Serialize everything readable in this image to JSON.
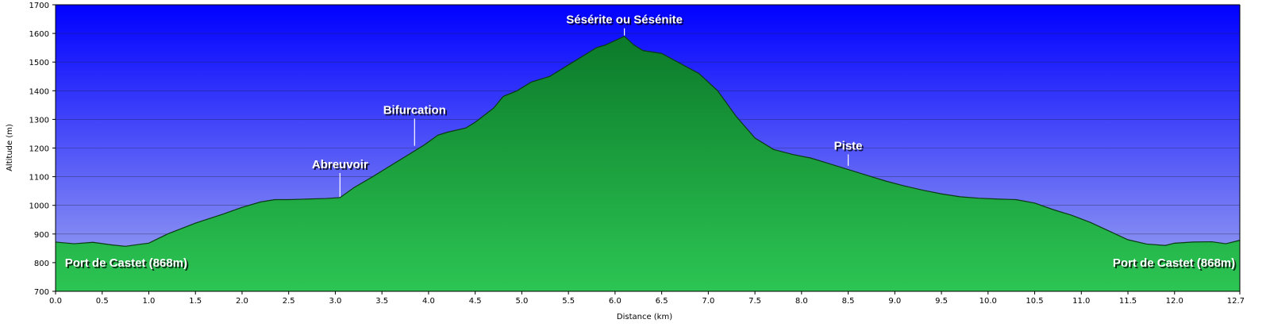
{
  "chart_data": {
    "type": "area",
    "xlabel": "Distance    (km)",
    "ylabel": "Altitude (m)",
    "xlim": [
      0,
      12.7
    ],
    "ylim": [
      700,
      1700
    ],
    "xticks": [
      0.0,
      0.5,
      1.0,
      1.5,
      2.0,
      2.5,
      3.0,
      3.5,
      4.0,
      4.5,
      5.0,
      5.5,
      6.0,
      6.5,
      7.0,
      7.5,
      8.0,
      8.5,
      9.0,
      9.5,
      10.0,
      10.5,
      11.0,
      11.5,
      12.0,
      12.7
    ],
    "xtick_labels": [
      "0.0",
      "0.5",
      "1.0",
      "1.5",
      "2.0",
      "2.5",
      "3.0",
      "3.5",
      "4.0",
      "4.5",
      "5.0",
      "5.5",
      "6.0",
      "6.5",
      "7.0",
      "7.5",
      "8.0",
      "8.5",
      "9.0",
      "9.5",
      "10.0",
      "10.5",
      "11.0",
      "11.5",
      "12.0",
      "12.7"
    ],
    "yticks": [
      700,
      800,
      900,
      1000,
      1100,
      1200,
      1300,
      1400,
      1500,
      1600,
      1700
    ],
    "ytick_labels": [
      "700",
      "800",
      "900",
      "1000",
      "1100",
      "1200",
      "1300",
      "1400",
      "1500",
      "1600",
      "1700"
    ],
    "grid": true,
    "colors": {
      "sky_top": "#0000ff",
      "sky_bottom": "#a0a8f0",
      "fill_top": "#0c7a2a",
      "fill_bottom": "#2cc553",
      "outline": "#0a3a12"
    },
    "series": [
      {
        "x": [
          0.0,
          0.2,
          0.4,
          0.6,
          0.75,
          0.9,
          1.0,
          1.2,
          1.5,
          1.8,
          2.0,
          2.2,
          2.35,
          2.5,
          2.7,
          2.9,
          3.05,
          3.2,
          3.4,
          3.6,
          3.8,
          3.95,
          4.1,
          4.2,
          4.4,
          4.5,
          4.7,
          4.8,
          4.95,
          5.1,
          5.3,
          5.5,
          5.65,
          5.8,
          5.9,
          6.0,
          6.1,
          6.2,
          6.3,
          6.5,
          6.7,
          6.9,
          7.1,
          7.3,
          7.5,
          7.7,
          7.9,
          8.1,
          8.3,
          8.5,
          8.7,
          8.9,
          9.1,
          9.3,
          9.5,
          9.7,
          9.9,
          10.1,
          10.3,
          10.5,
          10.7,
          10.9,
          11.1,
          11.3,
          11.5,
          11.7,
          11.9,
          12.0,
          12.2,
          12.4,
          12.55,
          12.7
        ],
        "y": [
          872,
          866,
          871,
          862,
          857,
          864,
          868,
          900,
          938,
          970,
          993,
          1012,
          1020,
          1020,
          1022,
          1024,
          1027,
          1062,
          1100,
          1140,
          1180,
          1210,
          1245,
          1255,
          1270,
          1290,
          1340,
          1380,
          1400,
          1430,
          1450,
          1490,
          1520,
          1550,
          1560,
          1575,
          1590,
          1560,
          1540,
          1530,
          1495,
          1460,
          1400,
          1310,
          1235,
          1195,
          1178,
          1165,
          1145,
          1125,
          1105,
          1085,
          1068,
          1053,
          1040,
          1030,
          1025,
          1022,
          1020,
          1008,
          985,
          965,
          940,
          910,
          880,
          865,
          860,
          868,
          872,
          873,
          866,
          878
        ]
      }
    ],
    "annotations": [
      {
        "text": "Sésérite ou Sésénite",
        "x": 6.1,
        "y": 1590,
        "label_y": 1640
      },
      {
        "text": "Bifurcation",
        "x": 3.85,
        "y": 1205,
        "label_y": 1325
      },
      {
        "text": "Abreuvoir",
        "x": 3.05,
        "y": 1027,
        "label_y": 1135
      },
      {
        "text": "Piste",
        "x": 8.5,
        "y": 1135,
        "label_y": 1200
      },
      {
        "text": "Port de Castet (868m)",
        "x": 0.1,
        "y": 800,
        "anchor": "start"
      },
      {
        "text": "Port de Castet (868m)",
        "x": 12.65,
        "y": 800,
        "anchor": "end"
      }
    ]
  }
}
